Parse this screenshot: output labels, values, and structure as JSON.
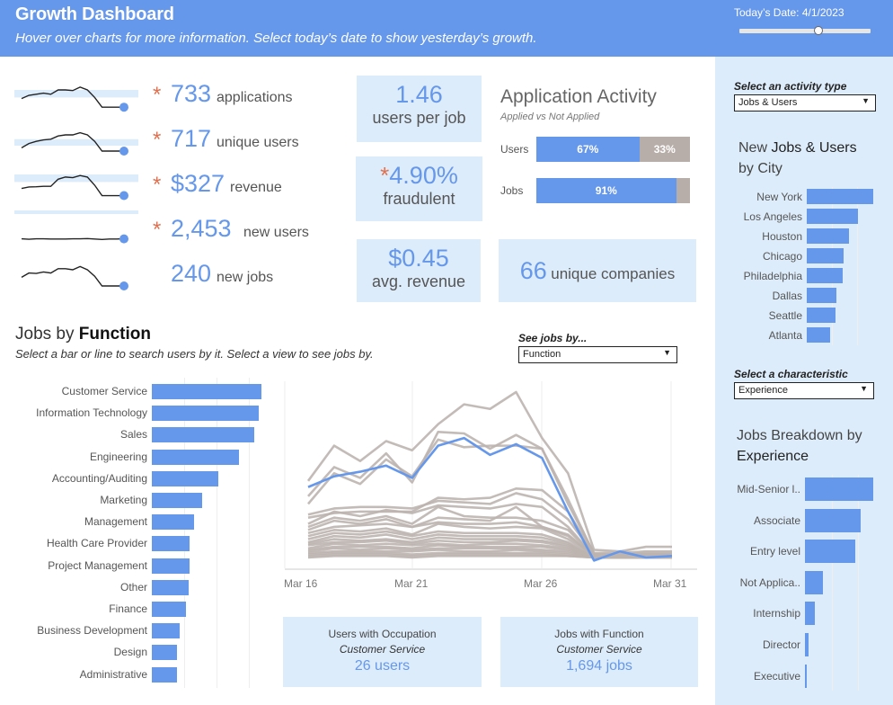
{
  "header": {
    "title": "Growth Dashboard",
    "subtitle": "Hover over charts for more information. Select today’s date to show yesterday’s growth.",
    "date_label": "Today’s Date:",
    "date_value": "4/1/2023",
    "slider_position": 0.6
  },
  "kpis": [
    {
      "value": "733",
      "label": "applications",
      "asterisk": true,
      "spark": [
        0.35,
        0.5,
        0.55,
        0.6,
        0.55,
        0.75,
        0.75,
        0.72,
        0.88,
        0.75,
        0.4,
        -0.05,
        -0.05,
        -0.05,
        -0.05
      ],
      "band": [
        0.4,
        0.75
      ]
    },
    {
      "value": "717",
      "label": "unique users",
      "asterisk": true,
      "spark": [
        0.15,
        0.35,
        0.45,
        0.52,
        0.55,
        0.7,
        0.75,
        0.75,
        0.85,
        0.75,
        0.45,
        0.0,
        0.0,
        0.0,
        0.0
      ],
      "band": [
        0.25,
        0.55
      ]
    },
    {
      "value": "$327",
      "label": "revenue",
      "asterisk": true,
      "spark": [
        0.35,
        0.42,
        0.43,
        0.45,
        0.45,
        0.78,
        0.88,
        0.85,
        0.95,
        0.88,
        0.5,
        0.02,
        0.02,
        0.02,
        0.02
      ],
      "band": [
        0.65,
        1.0
      ]
    },
    {
      "value": "2,453",
      "label": "new users",
      "asterisk": true,
      "spark": [
        0.1,
        0.08,
        0.1,
        0.1,
        0.09,
        0.09,
        0.09,
        0.1,
        0.1,
        0.11,
        0.09,
        0.07,
        0.09,
        0.09,
        0.1
      ],
      "band": [
        1.25,
        1.9
      ]
    },
    {
      "value": "240",
      "label": "new jobs",
      "asterisk": false,
      "spark": [
        0.4,
        0.6,
        0.58,
        0.65,
        0.6,
        0.8,
        0.8,
        0.75,
        0.9,
        0.75,
        0.45,
        0.0,
        0.0,
        0.0,
        0.0
      ],
      "band": null
    }
  ],
  "tiles": {
    "users_per_job": {
      "value": "1.46",
      "label": "users per job"
    },
    "fraudulent": {
      "value": "4.90%",
      "label": "fraudulent",
      "asterisk": "*"
    },
    "avg_revenue": {
      "value": "$0.45",
      "label": "avg. revenue"
    },
    "unique_companies": {
      "value": "66",
      "label": "unique companies"
    }
  },
  "application_activity": {
    "title": "Application Activity",
    "subtitle": "Applied vs Not Applied",
    "rows": [
      {
        "label": "Users",
        "applied": 67,
        "not_applied": 33,
        "applied_label": "67%",
        "not_applied_label": "33%"
      },
      {
        "label": "Jobs",
        "applied": 91,
        "not_applied": 9,
        "applied_label": "91%",
        "not_applied_label": ""
      }
    ]
  },
  "jobs_by_function": {
    "title_prefix": "Jobs by ",
    "title_bold": "Function",
    "subtitle": "Select a bar or line to search users by it. Select a view to see jobs by.",
    "dropdown_label": "See jobs by...",
    "dropdown_value": "Function",
    "categories": [
      "Customer Service",
      "Information Technology",
      "Sales",
      "Engineering",
      "Accounting/Auditing",
      "Marketing",
      "Management",
      "Health Care Provider",
      "Project Management",
      "Other",
      "Finance",
      "Business Development",
      "Design",
      "Administrative"
    ],
    "values": [
      1694,
      1650,
      1580,
      1345,
      1025,
      775,
      650,
      585,
      585,
      570,
      530,
      430,
      395,
      395
    ],
    "max": 1694
  },
  "line_chart": {
    "x_ticks": [
      "Mar 16",
      "Mar 21",
      "Mar 26",
      "Mar 31"
    ],
    "highlight": [
      0.46,
      0.53,
      0.56,
      0.6,
      0.52,
      0.73,
      0.78,
      0.67,
      0.74,
      0.65,
      0.3,
      -0.02,
      0.04,
      0.0,
      0.01
    ],
    "series": [
      [
        0.5,
        0.73,
        0.63,
        0.76,
        0.7,
        0.87,
        1.0,
        0.97,
        1.08,
        0.78,
        0.55,
        0.05,
        0.04,
        0.07,
        0.07
      ],
      [
        0.4,
        0.59,
        0.52,
        0.68,
        0.49,
        0.82,
        0.81,
        0.71,
        0.8,
        0.71,
        0.35,
        0.03,
        0.03,
        0.04,
        0.04
      ],
      [
        0.35,
        0.55,
        0.48,
        0.64,
        0.53,
        0.77,
        0.72,
        0.73,
        0.73,
        0.71,
        0.38,
        0.02,
        0.02,
        0.03,
        0.03
      ],
      [
        0.26,
        0.29,
        0.3,
        0.3,
        0.3,
        0.39,
        0.38,
        0.39,
        0.45,
        0.44,
        0.3,
        0.02,
        0.02,
        0.02,
        0.02
      ],
      [
        0.28,
        0.32,
        0.33,
        0.33,
        0.32,
        0.37,
        0.36,
        0.35,
        0.42,
        0.38,
        0.25,
        0.02,
        0.02,
        0.02,
        0.02
      ],
      [
        0.22,
        0.3,
        0.27,
        0.31,
        0.29,
        0.34,
        0.33,
        0.32,
        0.35,
        0.33,
        0.2,
        0.01,
        0.02,
        0.02,
        0.02
      ],
      [
        0.2,
        0.26,
        0.24,
        0.27,
        0.22,
        0.33,
        0.27,
        0.26,
        0.26,
        0.24,
        0.18,
        0.01,
        0.01,
        0.02,
        0.02
      ],
      [
        0.18,
        0.24,
        0.22,
        0.25,
        0.2,
        0.26,
        0.25,
        0.24,
        0.33,
        0.2,
        0.15,
        0.01,
        0.01,
        0.01,
        0.01
      ],
      [
        0.16,
        0.2,
        0.21,
        0.22,
        0.2,
        0.23,
        0.22,
        0.22,
        0.23,
        0.2,
        0.14,
        0.01,
        0.01,
        0.01,
        0.01
      ],
      [
        0.14,
        0.18,
        0.17,
        0.19,
        0.15,
        0.22,
        0.2,
        0.19,
        0.2,
        0.19,
        0.12,
        0.01,
        0.01,
        0.01,
        0.01
      ],
      [
        0.12,
        0.16,
        0.15,
        0.17,
        0.14,
        0.17,
        0.16,
        0.16,
        0.16,
        0.15,
        0.1,
        0.0,
        0.01,
        0.01,
        0.01
      ],
      [
        0.1,
        0.14,
        0.13,
        0.15,
        0.12,
        0.15,
        0.14,
        0.14,
        0.14,
        0.13,
        0.09,
        0.0,
        0.0,
        0.0,
        0.0
      ],
      [
        0.09,
        0.12,
        0.11,
        0.12,
        0.1,
        0.13,
        0.12,
        0.12,
        0.12,
        0.11,
        0.08,
        0.0,
        0.0,
        0.0,
        0.0
      ],
      [
        0.08,
        0.1,
        0.1,
        0.11,
        0.09,
        0.11,
        0.1,
        0.1,
        0.11,
        0.1,
        0.07,
        0.0,
        0.0,
        0.0,
        0.0
      ],
      [
        0.06,
        0.09,
        0.08,
        0.09,
        0.08,
        0.09,
        0.08,
        0.09,
        0.09,
        0.08,
        0.06,
        0.0,
        0.0,
        0.0,
        0.0
      ],
      [
        0.05,
        0.07,
        0.07,
        0.07,
        0.06,
        0.08,
        0.07,
        0.07,
        0.07,
        0.07,
        0.05,
        0.0,
        0.0,
        0.0,
        0.0
      ],
      [
        0.04,
        0.06,
        0.05,
        0.06,
        0.05,
        0.06,
        0.06,
        0.06,
        0.06,
        0.05,
        0.04,
        0.0,
        0.0,
        0.0,
        0.0
      ],
      [
        0.03,
        0.04,
        0.04,
        0.04,
        0.04,
        0.05,
        0.04,
        0.04,
        0.05,
        0.04,
        0.03,
        0.0,
        0.0,
        0.0,
        0.0
      ],
      [
        0.02,
        0.03,
        0.03,
        0.03,
        0.02,
        0.03,
        0.03,
        0.03,
        0.03,
        0.03,
        0.02,
        0.0,
        0.0,
        0.0,
        0.0
      ],
      [
        0.01,
        0.02,
        0.02,
        0.02,
        0.01,
        0.02,
        0.02,
        0.02,
        0.02,
        0.02,
        0.01,
        0.0,
        0.0,
        0.0,
        0.0
      ],
      [
        0.0,
        0.01,
        0.01,
        0.01,
        0.0,
        0.01,
        0.01,
        0.01,
        0.01,
        0.01,
        0.01,
        0.0,
        0.0,
        0.0,
        0.0
      ]
    ],
    "colors": {
      "highlight": "#6597EB",
      "other": "#BDB4AF"
    }
  },
  "bottom_tiles": {
    "users": {
      "line1": "Users with Occupation",
      "line2": "Customer Service",
      "value": "26 users"
    },
    "jobs": {
      "line1": "Jobs with Function",
      "line2": "Customer Service",
      "value": "1,694 jobs"
    }
  },
  "sidebar": {
    "activity_label": "Select an activity type",
    "activity_value": "Jobs & Users",
    "city_title_1": "New ",
    "city_title_bold": "Jobs & Users",
    "city_title_2": "by City",
    "cities": [
      "New York",
      "Los Angeles",
      "Houston",
      "Chicago",
      "Philadelphia",
      "Dallas",
      "Seattle",
      "Atlanta"
    ],
    "city_values": [
      100,
      77,
      63,
      56,
      54,
      44,
      43,
      35
    ],
    "characteristic_label": "Select a characteristic",
    "characteristic_value": "Experience",
    "exp_title_1": "Jobs Breakdown by",
    "exp_title_bold": "Experience",
    "experience": [
      "Mid-Senior l..",
      "Associate",
      "Entry level",
      "Not Applica..",
      "Internship",
      "Director",
      "Executive"
    ],
    "experience_values": [
      100,
      82,
      74,
      26,
      14,
      5,
      2
    ]
  },
  "colors": {
    "accent": "#6597EB",
    "tile_bg": "#DDECFB",
    "asterisk": "#E2704F",
    "gray_bar": "#B8AEA9"
  }
}
